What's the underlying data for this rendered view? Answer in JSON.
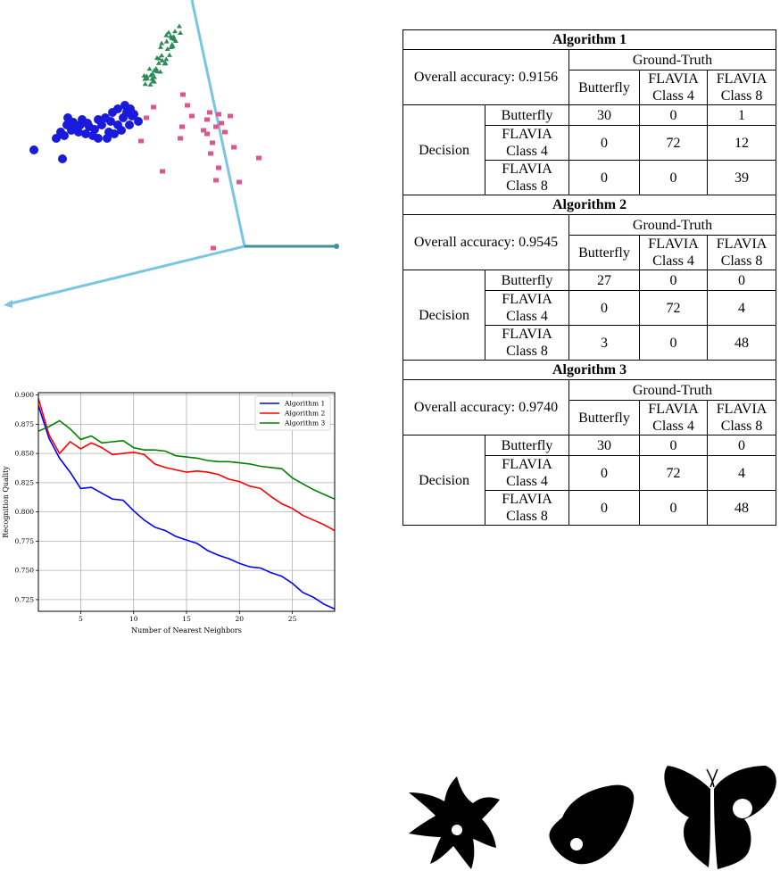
{
  "scatter3d": {
    "colors": {
      "class_a": "#1a1adc",
      "class_b": "#2e8b57",
      "class_c": "#e0558f",
      "axes": "#78c6e4"
    }
  },
  "chart_data": {
    "type": "line",
    "x": [
      1,
      2,
      3,
      4,
      5,
      6,
      7,
      8,
      9,
      10,
      11,
      12,
      13,
      14,
      15,
      16,
      17,
      18,
      19,
      20,
      21,
      22,
      23,
      24,
      25,
      26,
      27,
      28,
      29
    ],
    "xlabel": "Number of Nearest Neighbors",
    "ylabel": "Recognition Quality",
    "xlim": [
      1,
      29
    ],
    "ylim": [
      0.715,
      0.902
    ],
    "xticks": [
      5,
      10,
      15,
      20,
      25
    ],
    "yticks": [
      0.725,
      0.75,
      0.775,
      0.8,
      0.825,
      0.85,
      0.875,
      0.9
    ],
    "ytick_labels": [
      "0.725",
      "0.750",
      "0.775",
      "0.800",
      "0.825",
      "0.850",
      "0.875",
      "0.900"
    ],
    "grid": true,
    "legend_position": "top-right",
    "series": [
      {
        "name": "Algorithm 1",
        "color": "#0000ff",
        "values": [
          0.891,
          0.863,
          0.846,
          0.834,
          0.82,
          0.821,
          0.816,
          0.811,
          0.81,
          0.801,
          0.793,
          0.787,
          0.784,
          0.779,
          0.776,
          0.773,
          0.767,
          0.763,
          0.76,
          0.756,
          0.753,
          0.752,
          0.748,
          0.745,
          0.739,
          0.731,
          0.727,
          0.721,
          0.717
        ]
      },
      {
        "name": "Algorithm 2",
        "color": "#ff0000",
        "values": [
          0.897,
          0.866,
          0.85,
          0.86,
          0.854,
          0.859,
          0.855,
          0.849,
          0.85,
          0.851,
          0.849,
          0.841,
          0.838,
          0.836,
          0.834,
          0.835,
          0.834,
          0.832,
          0.828,
          0.826,
          0.822,
          0.82,
          0.813,
          0.807,
          0.803,
          0.797,
          0.793,
          0.789,
          0.784
        ]
      },
      {
        "name": "Algorithm 3",
        "color": "#008000",
        "values": [
          0.869,
          0.873,
          0.878,
          0.871,
          0.862,
          0.865,
          0.859,
          0.86,
          0.861,
          0.855,
          0.853,
          0.853,
          0.852,
          0.848,
          0.847,
          0.846,
          0.844,
          0.843,
          0.843,
          0.842,
          0.841,
          0.839,
          0.838,
          0.837,
          0.829,
          0.824,
          0.819,
          0.815,
          0.811
        ]
      }
    ]
  },
  "tables": [
    {
      "title": "Algorithm 1",
      "accuracy": "Overall accuracy: 0.9156",
      "ground_truth": "Ground-Truth",
      "columns": [
        "Butterfly",
        "FLAVIA\nClass 4",
        "FLAVIA\nClass 8"
      ],
      "decision": "Decision",
      "rows": [
        {
          "label": "Butterfly",
          "values": [
            "30",
            "0",
            "1"
          ]
        },
        {
          "label": "FLAVIA\nClass 4",
          "values": [
            "0",
            "72",
            "12"
          ]
        },
        {
          "label": "FLAVIA\nClass 8",
          "values": [
            "0",
            "0",
            "39"
          ]
        }
      ]
    },
    {
      "title": "Algorithm 2",
      "accuracy": "Overall accuracy: 0.9545",
      "ground_truth": "Ground-Truth",
      "columns": [
        "Butterfly",
        "FLAVIA\nClass 4",
        "FLAVIA\nClass 8"
      ],
      "decision": "Decision",
      "rows": [
        {
          "label": "Butterfly",
          "values": [
            "27",
            "0",
            "0"
          ]
        },
        {
          "label": "FLAVIA\nClass 4",
          "values": [
            "0",
            "72",
            "4"
          ]
        },
        {
          "label": "FLAVIA\nClass 8",
          "values": [
            "3",
            "0",
            "48"
          ]
        }
      ]
    },
    {
      "title": "Algorithm 3",
      "accuracy": "Overall accuracy: 0.9740",
      "ground_truth": "Ground-Truth",
      "columns": [
        "Butterfly",
        "FLAVIA\nClass 4",
        "FLAVIA\nClass 8"
      ],
      "decision": "Decision",
      "rows": [
        {
          "label": "Butterfly",
          "values": [
            "30",
            "0",
            "0"
          ]
        },
        {
          "label": "FLAVIA\nClass 4",
          "values": [
            "0",
            "72",
            "4"
          ]
        },
        {
          "label": "FLAVIA\nClass 8",
          "values": [
            "0",
            "0",
            "48"
          ]
        }
      ]
    }
  ],
  "silhouettes": {
    "color": "#000000"
  }
}
